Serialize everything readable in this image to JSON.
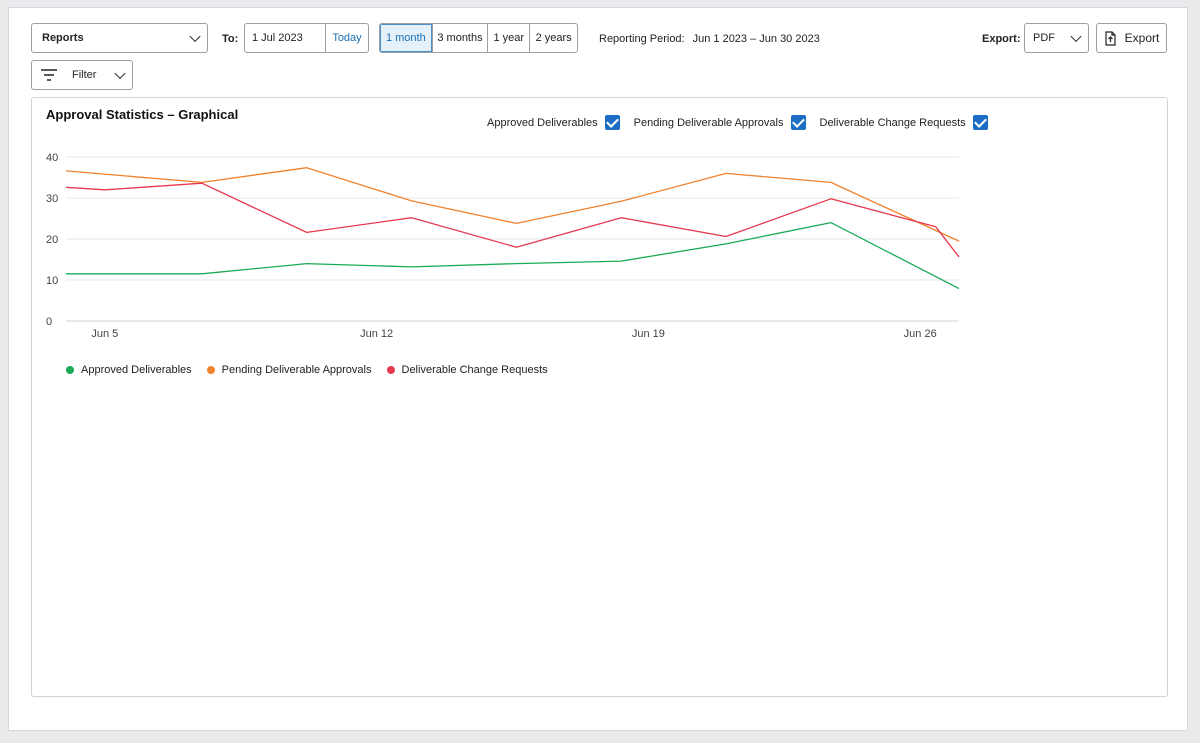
{
  "toolbar": {
    "report_select": "Reports",
    "to_label": "To:",
    "date_value": "1 Jul 2023",
    "today_label": "Today",
    "ranges": [
      {
        "label": "1 month",
        "active": true
      },
      {
        "label": "3 months",
        "active": false
      },
      {
        "label": "1 year",
        "active": false
      },
      {
        "label": "2 years",
        "active": false
      }
    ],
    "period_label": "Reporting Period:",
    "period_value": "Jun 1 2023 – Jun 30 2023",
    "export_label": "Export:",
    "export_format": "PDF",
    "export_button": "Export",
    "filter_label": "Filter"
  },
  "card": {
    "title": "Approval Statistics – Graphical",
    "toggles": [
      {
        "label": "Approved Deliverables",
        "checked": true
      },
      {
        "label": "Pending Deliverable Approvals",
        "checked": true
      },
      {
        "label": "Deliverable Change Requests",
        "checked": true
      }
    ]
  },
  "chart_data": {
    "type": "line",
    "x_ticks": [
      {
        "day": 5,
        "label": "Jun 5"
      },
      {
        "day": 12,
        "label": "Jun 12"
      },
      {
        "day": 19,
        "label": "Jun 19"
      },
      {
        "day": 26,
        "label": "Jun 26"
      }
    ],
    "xlim": [
      4,
      27
    ],
    "ylim": [
      0,
      40
    ],
    "y_ticks": [
      0,
      10,
      20,
      30,
      40
    ],
    "grid": true,
    "legend_position": "bottom-left",
    "series": [
      {
        "name": "Approved Deliverables",
        "color": "#1aaa55",
        "points": [
          [
            4,
            11.5
          ],
          [
            7.5,
            11.5
          ],
          [
            10.2,
            14
          ],
          [
            12.9,
            13.2
          ],
          [
            15.6,
            14
          ],
          [
            18.3,
            14.6
          ],
          [
            21,
            18.8
          ],
          [
            23.7,
            24
          ],
          [
            27,
            7.9
          ]
        ]
      },
      {
        "name": "Pending Deliverable Approvals",
        "color": "#f0822e",
        "points": [
          [
            4,
            36.6
          ],
          [
            7.5,
            33.8
          ],
          [
            10.2,
            37.4
          ],
          [
            12.9,
            29.3
          ],
          [
            15.6,
            23.8
          ],
          [
            18.3,
            29.2
          ],
          [
            21,
            36
          ],
          [
            23.7,
            33.8
          ],
          [
            27,
            19.5
          ]
        ]
      },
      {
        "name": "Deliverable Change Requests",
        "color": "#e6394f",
        "points": [
          [
            4,
            32.6
          ],
          [
            5,
            32
          ],
          [
            7.5,
            33.6
          ],
          [
            10.2,
            21.6
          ],
          [
            12.9,
            25.2
          ],
          [
            15.6,
            18
          ],
          [
            18.3,
            25.2
          ],
          [
            21,
            20.6
          ],
          [
            23.7,
            29.8
          ],
          [
            26.4,
            23
          ],
          [
            27,
            15.6
          ]
        ]
      }
    ]
  }
}
